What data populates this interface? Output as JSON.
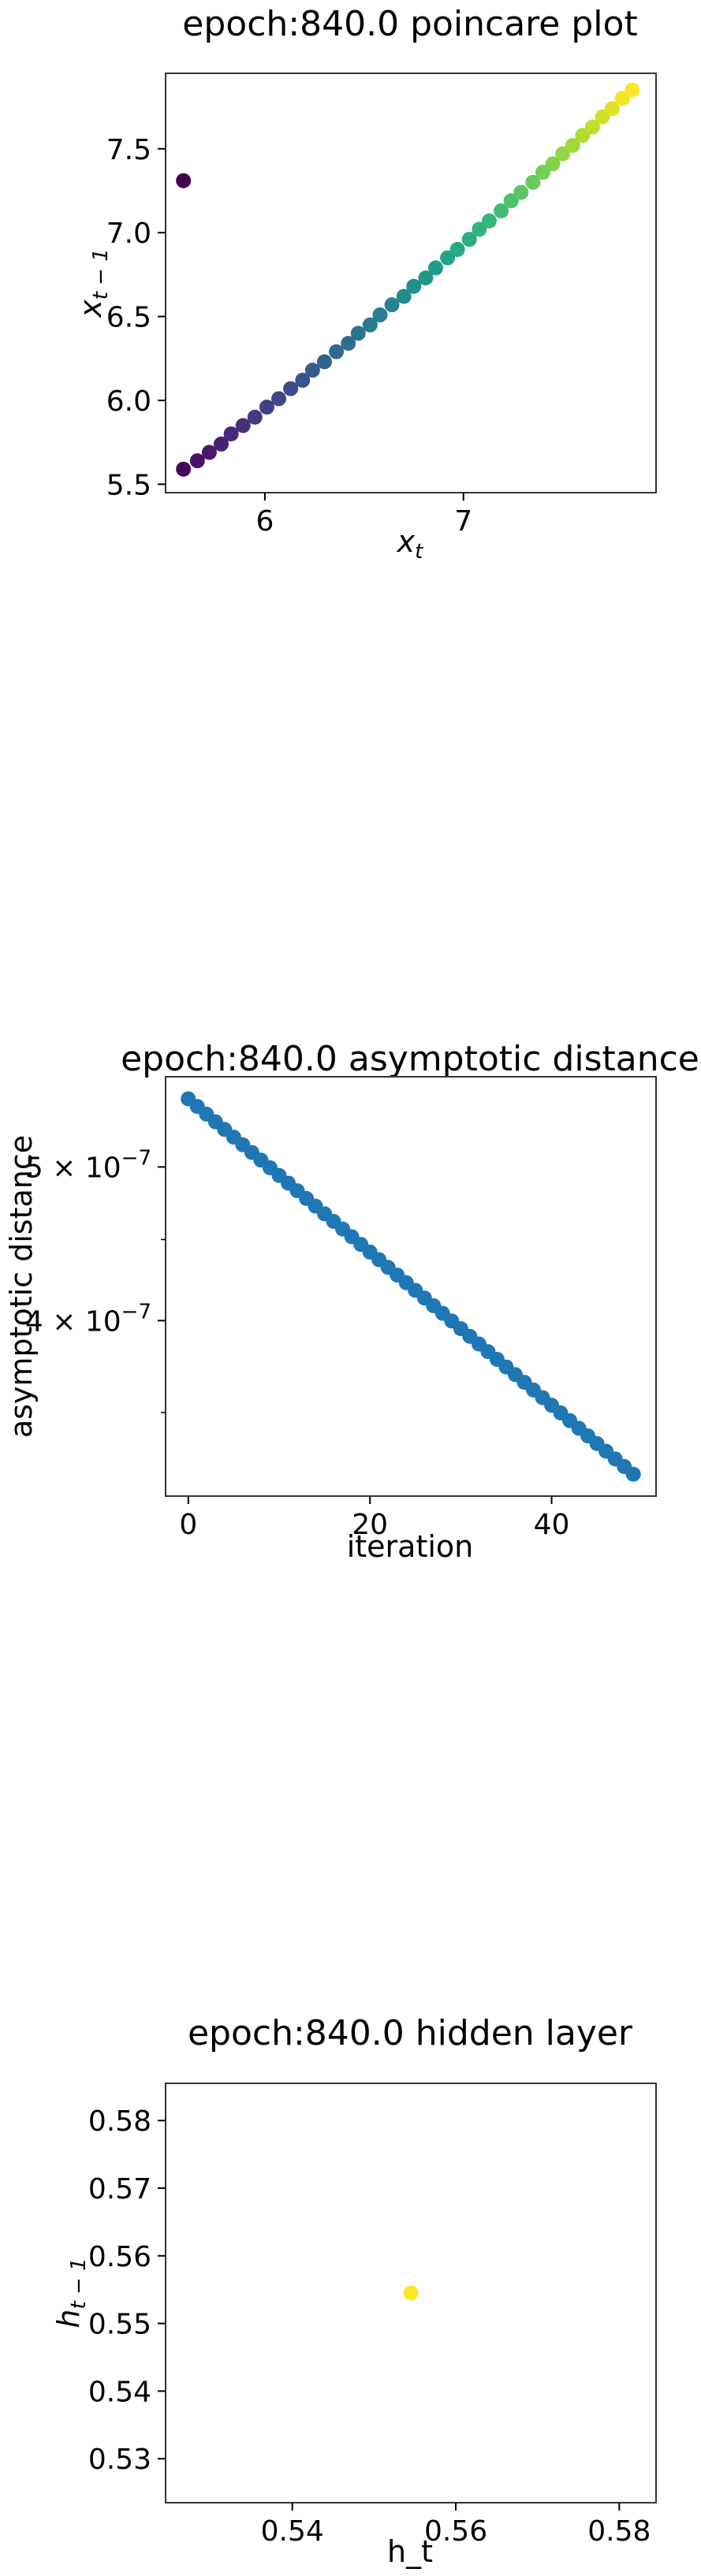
{
  "chart_data": [
    {
      "type": "scatter",
      "title": "epoch:840.0 poincare plot",
      "xlabel": "x_t",
      "ylabel": "x_{t-1}",
      "xlim": [
        5.5,
        7.97
      ],
      "ylim": [
        5.45,
        7.95
      ],
      "xticks": [
        6,
        7
      ],
      "yticks": [
        5.5,
        6.0,
        6.5,
        7.0,
        7.5
      ],
      "ytick_labels": [
        "5.5",
        "6.0",
        "6.5",
        "7.0",
        "7.5"
      ],
      "colormap": "viridis",
      "colors": [
        "#440154",
        "#482878",
        "#3e4989",
        "#31688e",
        "#26828e",
        "#1f9e89",
        "#35b779",
        "#6ece58",
        "#b5de2b",
        "#fde725"
      ],
      "points": [
        [
          5.59,
          7.31
        ],
        [
          5.59,
          5.59
        ],
        [
          5.66,
          5.64
        ],
        [
          5.72,
          5.69
        ],
        [
          5.78,
          5.74
        ],
        [
          5.83,
          5.8
        ],
        [
          5.89,
          5.85
        ],
        [
          5.95,
          5.9
        ],
        [
          6.01,
          5.96
        ],
        [
          6.07,
          6.01
        ],
        [
          6.13,
          6.07
        ],
        [
          6.19,
          6.12
        ],
        [
          6.24,
          6.18
        ],
        [
          6.3,
          6.23
        ],
        [
          6.36,
          6.29
        ],
        [
          6.42,
          6.34
        ],
        [
          6.47,
          6.4
        ],
        [
          6.53,
          6.45
        ],
        [
          6.58,
          6.51
        ],
        [
          6.64,
          6.57
        ],
        [
          6.7,
          6.62
        ],
        [
          6.75,
          6.68
        ],
        [
          6.81,
          6.73
        ],
        [
          6.86,
          6.79
        ],
        [
          6.92,
          6.85
        ],
        [
          6.97,
          6.9
        ],
        [
          7.03,
          6.96
        ],
        [
          7.08,
          7.02
        ],
        [
          7.13,
          7.07
        ],
        [
          7.19,
          7.13
        ],
        [
          7.24,
          7.19
        ],
        [
          7.29,
          7.24
        ],
        [
          7.35,
          7.3
        ],
        [
          7.4,
          7.36
        ],
        [
          7.45,
          7.41
        ],
        [
          7.5,
          7.47
        ],
        [
          7.55,
          7.52
        ],
        [
          7.6,
          7.58
        ],
        [
          7.65,
          7.63
        ],
        [
          7.7,
          7.69
        ],
        [
          7.75,
          7.74
        ],
        [
          7.8,
          7.8
        ],
        [
          7.85,
          7.85
        ]
      ]
    },
    {
      "type": "scatter",
      "title": "epoch:840.0 asymptotic distance",
      "xlabel": "iteration",
      "ylabel": "asymptotic distance",
      "yscale": "log",
      "color": "#1f77b4",
      "xlim": [
        -2.5,
        51.5
      ],
      "ylim": [
        3.1e-07,
        5.7e-07
      ],
      "xticks": [
        0,
        20,
        40
      ],
      "yticks": [
        4e-07,
        5e-07
      ],
      "ytick_labels": [
        [
          "4",
          "-7"
        ],
        [
          "5",
          "-7"
        ]
      ],
      "x": [
        0,
        1,
        2,
        3,
        4,
        5,
        6,
        7,
        8,
        9,
        10,
        11,
        12,
        13,
        14,
        15,
        16,
        17,
        18,
        19,
        20,
        21,
        22,
        23,
        24,
        25,
        26,
        27,
        28,
        29,
        30,
        31,
        32,
        33,
        34,
        35,
        36,
        37,
        38,
        39,
        40,
        41,
        42,
        43,
        44,
        45,
        46,
        47,
        48,
        49
      ],
      "y_start": 5.52e-07,
      "y_end": 3.2e-07
    },
    {
      "type": "scatter",
      "title": "epoch:840.0 hidden layer",
      "xlabel": "h_t",
      "ylabel": "h_{t-1}",
      "xlim": [
        0.5245,
        0.5845
      ],
      "ylim": [
        0.5235,
        0.5855
      ],
      "xticks": [
        0.54,
        0.56,
        0.58
      ],
      "yticks": [
        0.53,
        0.54,
        0.55,
        0.56,
        0.57,
        0.58
      ],
      "tick_labels_x": [
        "0.54",
        "0.56",
        "0.58"
      ],
      "tick_labels_y": [
        "0.53",
        "0.54",
        "0.55",
        "0.56",
        "0.57",
        "0.58"
      ],
      "color": "#fde725",
      "points": [
        [
          0.5545,
          0.5545
        ]
      ]
    }
  ]
}
